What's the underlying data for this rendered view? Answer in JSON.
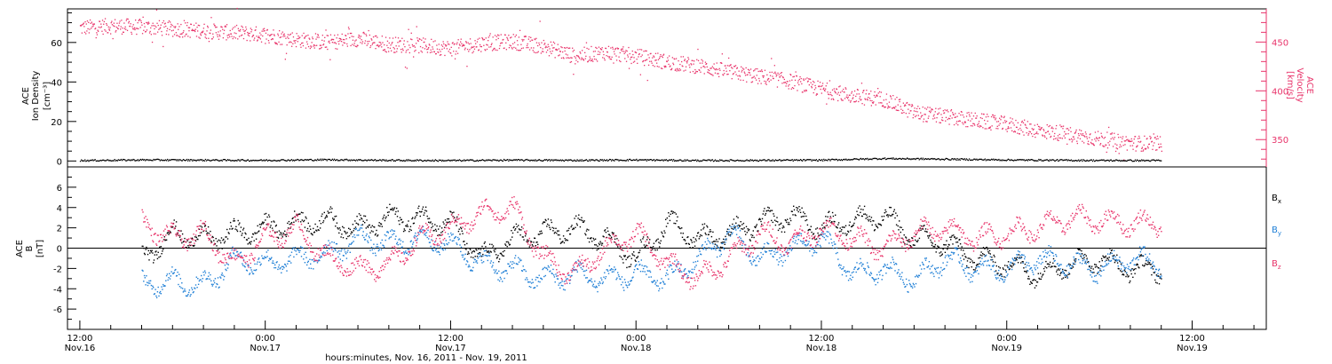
{
  "chart_data": [
    {
      "type": "scatter",
      "panel": "top",
      "ylabel_left": [
        "ACE",
        "Ion Density",
        "[cm⁻³]"
      ],
      "ylabel_right": [
        "ACE",
        "Velocity",
        "[km/s]"
      ],
      "ylim_left": [
        -3,
        77
      ],
      "ylim_right": [
        322,
        484
      ],
      "left_ticks": [
        0,
        20,
        40,
        60
      ],
      "right_ticks": [
        350,
        400,
        450
      ],
      "series": [
        {
          "axis": "right",
          "color": "#e8336a",
          "t_hours": [
            0,
            2,
            4,
            6,
            8,
            10,
            12,
            14,
            16,
            18,
            20,
            22,
            24,
            26,
            28,
            30,
            32,
            34,
            36,
            38,
            40,
            42,
            44,
            46,
            48,
            50,
            52,
            54,
            56,
            58,
            60,
            62,
            64,
            66,
            68,
            70
          ],
          "values": [
            465,
            467,
            466,
            464,
            462,
            460,
            458,
            453,
            450,
            454,
            448,
            447,
            444,
            449,
            451,
            446,
            436,
            440,
            436,
            430,
            426,
            420,
            415,
            410,
            402,
            395,
            392,
            378,
            374,
            370,
            366,
            360,
            356,
            351,
            347,
            346
          ]
        },
        {
          "axis": "left",
          "color": "#000000",
          "t_hours": [
            0,
            4,
            8,
            12,
            16,
            20,
            24,
            28,
            32,
            36,
            40,
            44,
            48,
            52,
            56,
            60,
            64,
            68,
            70
          ],
          "values": [
            0.5,
            0.8,
            0.7,
            0.6,
            0.9,
            0.6,
            0.5,
            0.7,
            0.6,
            0.8,
            0.5,
            0.6,
            0.7,
            1.5,
            1.2,
            0.8,
            0.6,
            0.5,
            0.5
          ]
        }
      ]
    },
    {
      "type": "scatter",
      "panel": "bottom",
      "ylabel_left": [
        "ACE",
        "B",
        "[nT]"
      ],
      "ylim": [
        -8,
        8
      ],
      "ticks": [
        -6,
        -4,
        -2,
        0,
        2,
        4,
        6
      ],
      "legend": [
        "Bx",
        "By",
        "Bz"
      ],
      "series": [
        {
          "name": "Bx",
          "color": "#000000",
          "t_hours": [
            4,
            6,
            8,
            10,
            12,
            14,
            16,
            18,
            20,
            22,
            24,
            26,
            28,
            30,
            32,
            34,
            36,
            38,
            40,
            42,
            44,
            46,
            48,
            50,
            52,
            54,
            56,
            58,
            60,
            62,
            64,
            66,
            68,
            70
          ],
          "values": [
            -1,
            1.5,
            1,
            1.5,
            2,
            2.5,
            2.8,
            2,
            3,
            3,
            2.5,
            -1,
            1,
            1.5,
            2,
            1,
            -1,
            2.5,
            1,
            1.5,
            2.5,
            3.2,
            2,
            2.8,
            3.2,
            1,
            0.5,
            -1,
            -1.5,
            -2.5,
            -1.5,
            -1,
            -2,
            -2
          ]
        },
        {
          "name": "By",
          "color": "#1f7fd6",
          "t_hours": [
            4,
            6,
            8,
            10,
            12,
            14,
            16,
            18,
            20,
            22,
            24,
            26,
            28,
            30,
            32,
            34,
            36,
            38,
            40,
            42,
            44,
            46,
            48,
            50,
            52,
            54,
            56,
            58,
            60,
            62,
            64,
            66,
            68,
            70
          ],
          "values": [
            -3.5,
            -3.2,
            -3.6,
            -1,
            -1.5,
            -1,
            -0.5,
            1,
            0.5,
            1,
            0.5,
            -1.5,
            -2,
            -3,
            -2.5,
            -3,
            -2.5,
            -3,
            -1,
            1.5,
            -1,
            0,
            1,
            -2.5,
            -2,
            -3,
            -1,
            -2,
            -2,
            -1,
            -1.5,
            -2,
            -1,
            -1.5
          ]
        },
        {
          "name": "Bz",
          "color": "#e8336a",
          "t_hours": [
            4,
            6,
            8,
            10,
            12,
            14,
            16,
            18,
            20,
            22,
            24,
            26,
            28,
            30,
            32,
            34,
            36,
            38,
            40,
            42,
            44,
            46,
            48,
            50,
            52,
            54,
            56,
            58,
            60,
            62,
            64,
            66,
            68,
            70
          ],
          "values": [
            2.5,
            1,
            1.5,
            -1.5,
            1,
            2,
            -1,
            -2,
            -1.5,
            1,
            2,
            3.5,
            4,
            -1,
            -2.5,
            0,
            1.5,
            -1.5,
            -3,
            -1,
            1.5,
            0.5,
            2,
            1,
            0,
            1.5,
            2,
            1,
            1.5,
            2,
            3,
            2.8,
            2.5,
            2.5
          ]
        }
      ]
    },
    {
      "type": "x-axis",
      "tick_hours": [
        0,
        12,
        24,
        36,
        48,
        60,
        72,
        84
      ],
      "tick_labels_time": [
        "12:00",
        "0:00",
        "12:00",
        "0:00",
        "12:00",
        "0:00",
        "12:00",
        ""
      ],
      "tick_labels_date": [
        "Nov.16",
        "Nov.17",
        "Nov.17",
        "Nov.18",
        "Nov.18",
        "Nov.19",
        "Nov.19",
        ""
      ],
      "xlabel": "hours:minutes, Nov. 16, 2011 - Nov. 19, 2011",
      "xlim_hours": [
        -0.8,
        76.8
      ]
    }
  ]
}
